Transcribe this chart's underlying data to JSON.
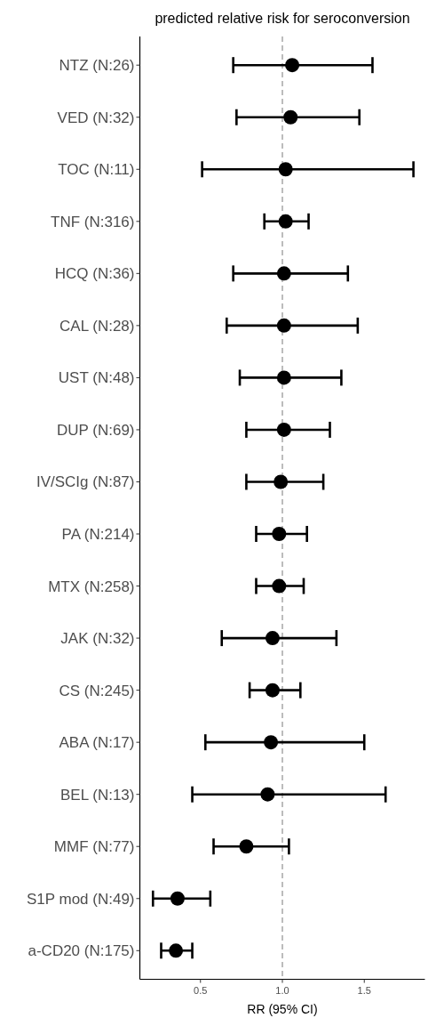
{
  "chart_data": {
    "type": "scatter",
    "orientation": "horizontal",
    "title": "predicted relative risk for seroconversion",
    "xlabel": "RR (95% CI)",
    "categories": [
      "NTZ (N:26)",
      "VED (N:32)",
      "TOC (N:11)",
      "TNF (N:316)",
      "HCQ (N:36)",
      "CAL (N:28)",
      "UST (N:48)",
      "DUP (N:69)",
      "IV/SCIg (N:87)",
      "PA (N:214)",
      "MTX (N:258)",
      "JAK (N:32)",
      "CS (N:245)",
      "ABA (N:17)",
      "BEL (N:13)",
      "MMF (N:77)",
      "S1P mod (N:49)",
      "a-CD20 (N:175)"
    ],
    "values": [
      1.06,
      1.05,
      1.02,
      1.02,
      1.01,
      1.01,
      1.01,
      1.01,
      0.99,
      0.98,
      0.98,
      0.94,
      0.94,
      0.93,
      0.91,
      0.78,
      0.36,
      0.35
    ],
    "errors": [
      [
        0.7,
        1.55
      ],
      [
        0.72,
        1.47
      ],
      [
        0.51,
        1.8
      ],
      [
        0.89,
        1.16
      ],
      [
        0.7,
        1.4
      ],
      [
        0.66,
        1.46
      ],
      [
        0.74,
        1.36
      ],
      [
        0.78,
        1.29
      ],
      [
        0.78,
        1.25
      ],
      [
        0.84,
        1.15
      ],
      [
        0.84,
        1.13
      ],
      [
        0.63,
        1.33
      ],
      [
        0.8,
        1.11
      ],
      [
        0.53,
        1.5
      ],
      [
        0.45,
        1.63
      ],
      [
        0.58,
        1.04
      ],
      [
        0.21,
        0.56
      ],
      [
        0.26,
        0.45
      ]
    ],
    "color": "#000000",
    "marker": "circle",
    "xlim": [
      0.13,
      1.87
    ],
    "xticks": [
      {
        "value": 0.5,
        "label": "0.5"
      },
      {
        "value": 1,
        "label": "1.0"
      },
      {
        "value": 1.5,
        "label": "1.5"
      }
    ],
    "ref_lines": [
      {
        "axis": "x",
        "value": 1,
        "color": "#a6a6a6",
        "line_style": "dashed"
      }
    ],
    "grid": false
  }
}
